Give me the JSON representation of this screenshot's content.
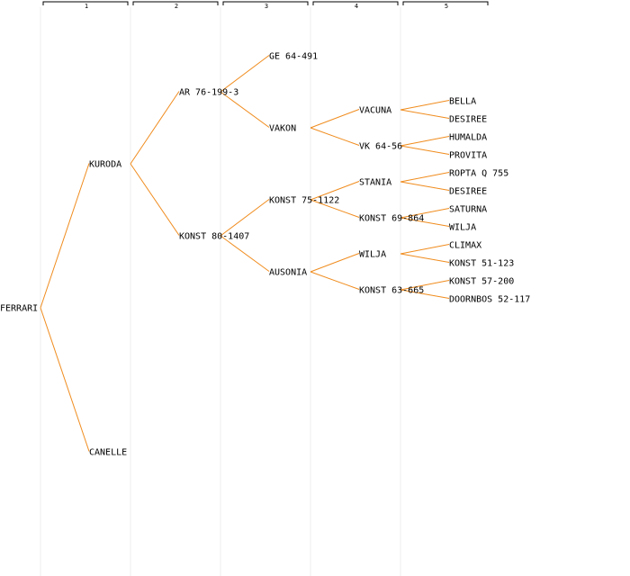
{
  "colors": {
    "background": "#ffffff",
    "connector": "#f08c1e",
    "column_line": "#eeeeee",
    "header_bracket": "#000000",
    "text": "#000000"
  },
  "generations": [
    "1",
    "2",
    "3",
    "4",
    "5"
  ],
  "root": {
    "name": "FERRARI",
    "parents": [
      {
        "name": "KURODA",
        "parents": [
          {
            "name": "AR 76-199-3",
            "parents": [
              {
                "name": "GE 64-491",
                "parents": []
              },
              {
                "name": "VAKON",
                "parents": [
                  {
                    "name": "VACUNA",
                    "parents": [
                      {
                        "name": "BELLA",
                        "parents": []
                      },
                      {
                        "name": "DESIREE",
                        "parents": []
                      }
                    ]
                  },
                  {
                    "name": "VK 64-56",
                    "parents": [
                      {
                        "name": "HUMALDA",
                        "parents": []
                      },
                      {
                        "name": "PROVITA",
                        "parents": []
                      }
                    ]
                  }
                ]
              }
            ]
          },
          {
            "name": "KONST 80-1407",
            "parents": [
              {
                "name": "KONST 75-1122",
                "parents": [
                  {
                    "name": "STANIA",
                    "parents": [
                      {
                        "name": "ROPTA Q 755",
                        "parents": []
                      },
                      {
                        "name": "DESIREE",
                        "parents": []
                      }
                    ]
                  },
                  {
                    "name": "KONST 69-864",
                    "parents": [
                      {
                        "name": "SATURNA",
                        "parents": []
                      },
                      {
                        "name": "WILJA",
                        "parents": []
                      }
                    ]
                  }
                ]
              },
              {
                "name": "AUSONIA",
                "parents": [
                  {
                    "name": "WILJA",
                    "parents": [
                      {
                        "name": "CLIMAX",
                        "parents": []
                      },
                      {
                        "name": "KONST 51-123",
                        "parents": []
                      }
                    ]
                  },
                  {
                    "name": "KONST 63-665",
                    "parents": [
                      {
                        "name": "KONST 57-200",
                        "parents": []
                      },
                      {
                        "name": "DOORNBOS 52-117",
                        "parents": []
                      }
                    ]
                  }
                ]
              }
            ]
          }
        ]
      },
      {
        "name": "CANELLE",
        "parents": []
      }
    ]
  }
}
